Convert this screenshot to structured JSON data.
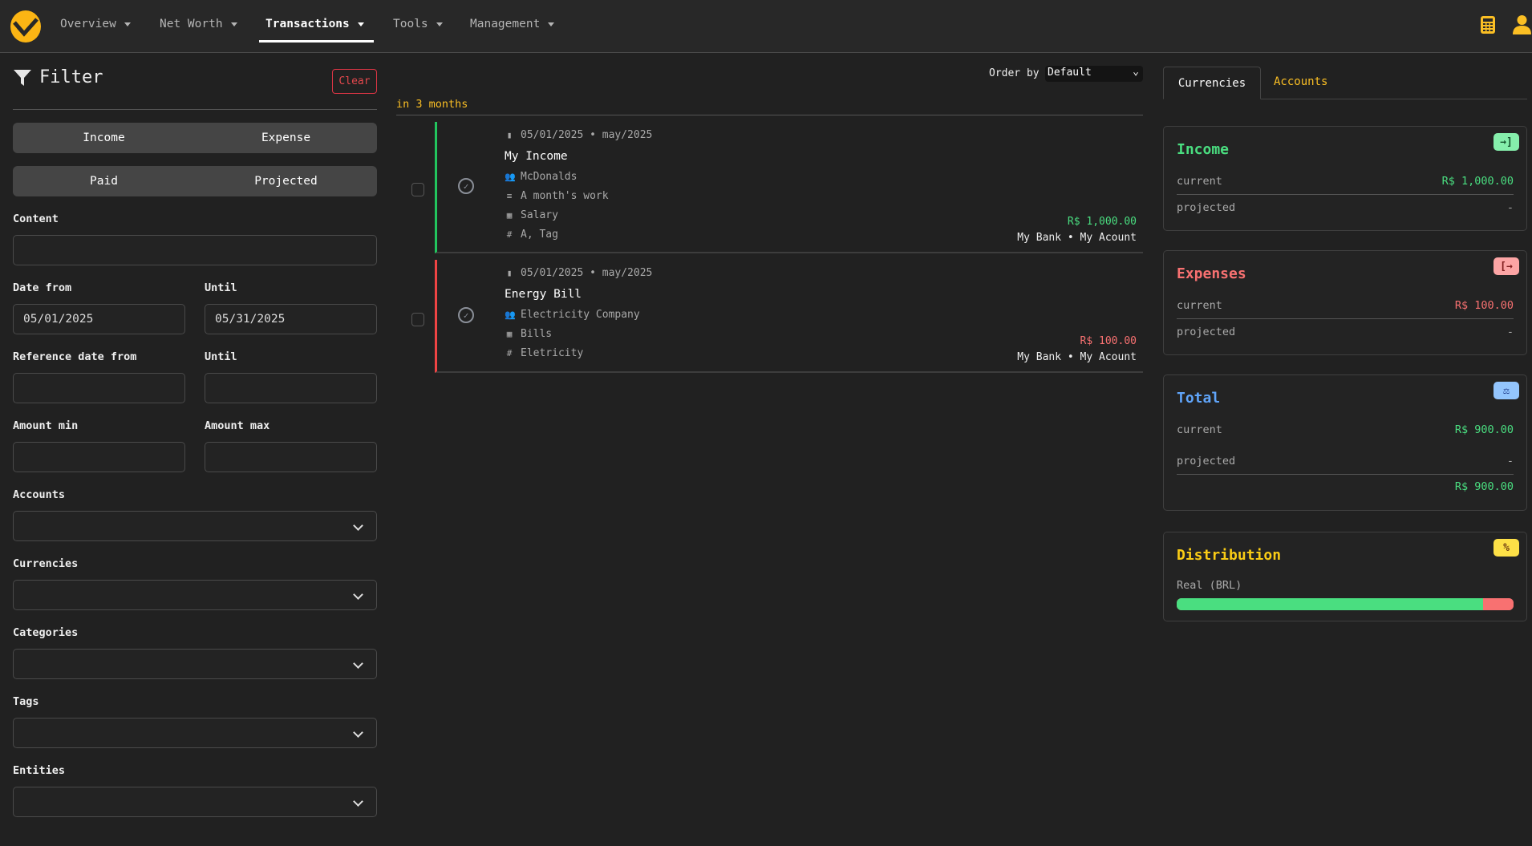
{
  "nav": {
    "items": [
      {
        "label": "Overview"
      },
      {
        "label": "Net Worth"
      },
      {
        "label": "Transactions",
        "active": true
      },
      {
        "label": "Tools"
      },
      {
        "label": "Management"
      }
    ],
    "right_icons": [
      "calculator-icon",
      "user-icon"
    ],
    "accent": "#fbbf24"
  },
  "filter": {
    "title": "Filter",
    "clear": "Clear",
    "type_toggle": [
      "Income",
      "Expense"
    ],
    "status_toggle": [
      "Paid",
      "Projected"
    ],
    "content_label": "Content",
    "content_value": "",
    "date_from_label": "Date from",
    "date_from": "05/01/2025",
    "until_label": "Until",
    "date_until": "05/31/2025",
    "ref_from_label": "Reference date from",
    "ref_until_label": "Until",
    "amount_min_label": "Amount min",
    "amount_max_label": "Amount max",
    "accounts_label": "Accounts",
    "currencies_label": "Currencies",
    "categories_label": "Categories",
    "tags_label": "Tags",
    "entities_label": "Entities"
  },
  "list": {
    "order_by_label": "Order by",
    "order_by_value": "Default",
    "group_label": "in 3 months",
    "transactions": [
      {
        "date": "05/01/2025 • may/2025",
        "title": "My Income",
        "entity": "McDonalds",
        "description": "A month's work",
        "category": "Salary",
        "tags": "A, Tag",
        "amount": "R$ 1,000.00",
        "account": "My Bank • My Acount",
        "type": "income"
      },
      {
        "date": "05/01/2025 • may/2025",
        "title": "Energy Bill",
        "entity": "Electricity Company",
        "category": "Bills",
        "tags": "Eletricity",
        "amount": "R$ 100.00",
        "account": "My Bank • My Acount",
        "type": "expense"
      }
    ]
  },
  "summary": {
    "tabs": [
      "Currencies",
      "Accounts"
    ],
    "active_tab": "Currencies",
    "income": {
      "title": "Income",
      "current_label": "current",
      "current": "R$ 1,000.00",
      "projected_label": "projected",
      "projected": "-"
    },
    "expenses": {
      "title": "Expenses",
      "current_label": "current",
      "current": "R$ 100.00",
      "projected_label": "projected",
      "projected": "-"
    },
    "total": {
      "title": "Total",
      "current_label": "current",
      "current": "R$ 900.00",
      "projected_label": "projected",
      "projected": "-",
      "sum": "R$ 900.00"
    },
    "distribution": {
      "title": "Distribution",
      "currency": "Real (BRL)",
      "income_share_percent": 90.9,
      "expense_share_percent": 9.1
    },
    "colors": {
      "income": "#4ade80",
      "expense": "#f87171",
      "total": "#60a5fa",
      "distribution": "#facc15"
    }
  }
}
